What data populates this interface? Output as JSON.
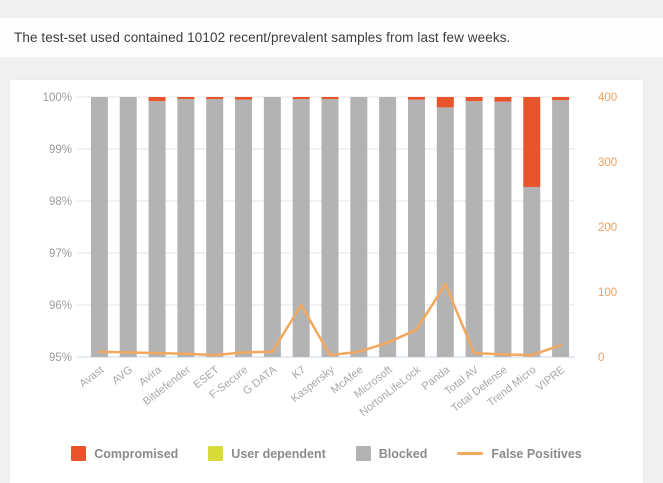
{
  "header": {
    "note": "The test-set used contained 10102 recent/prevalent samples from last few weeks."
  },
  "chart_data": {
    "type": "bar",
    "stacked": true,
    "title": "",
    "categories": [
      "Avast",
      "AVG",
      "Avira",
      "Bitdefender",
      "ESET",
      "F-Secure",
      "G DATA",
      "K7",
      "Kaspersky",
      "McAfee",
      "Microsoft",
      "NortonLifeLock",
      "Panda",
      "Total AV",
      "Total Defense",
      "Trend Micro",
      "VIPRE"
    ],
    "series": [
      {
        "name": "Compromised",
        "color": "#e8552d",
        "values": [
          0,
          0,
          0.08,
          0.04,
          0.04,
          0.05,
          0,
          0.04,
          0.04,
          0,
          0,
          0.05,
          0.2,
          0.08,
          0.09,
          1.73,
          0.06
        ]
      },
      {
        "name": "User dependent",
        "color": "#d8dc3a",
        "values": [
          0,
          0,
          0,
          0,
          0,
          0,
          0,
          0,
          0,
          0,
          0,
          0,
          0,
          0,
          0,
          0,
          0
        ]
      },
      {
        "name": "Blocked",
        "color": "#b3b3b3",
        "values": [
          100,
          100,
          99.92,
          99.96,
          99.96,
          99.95,
          100,
          99.96,
          99.96,
          100,
          100,
          99.95,
          99.8,
          99.92,
          99.91,
          98.27,
          99.94
        ]
      }
    ],
    "line_series": {
      "name": "False Positives",
      "color": "#f3a85f",
      "values": [
        8,
        7,
        6,
        5,
        3,
        7,
        8,
        80,
        3,
        8,
        22,
        42,
        112,
        6,
        4,
        3,
        18
      ]
    },
    "left_axis": {
      "ticks": [
        "100%",
        "99%",
        "98%",
        "97%",
        "96%",
        "95%"
      ],
      "min": 95,
      "max": 100,
      "label_color": "#9b9b9b"
    },
    "right_axis": {
      "ticks": [
        "400",
        "300",
        "200",
        "100",
        "0"
      ],
      "min": 0,
      "max": 400,
      "label_color": "#f0a061"
    },
    "grid": true,
    "grid_color": "#e5e5e5",
    "baseline_color": "#c9d7e8",
    "category_label_color": "#a8a8a8",
    "legend_position": "bottom"
  }
}
